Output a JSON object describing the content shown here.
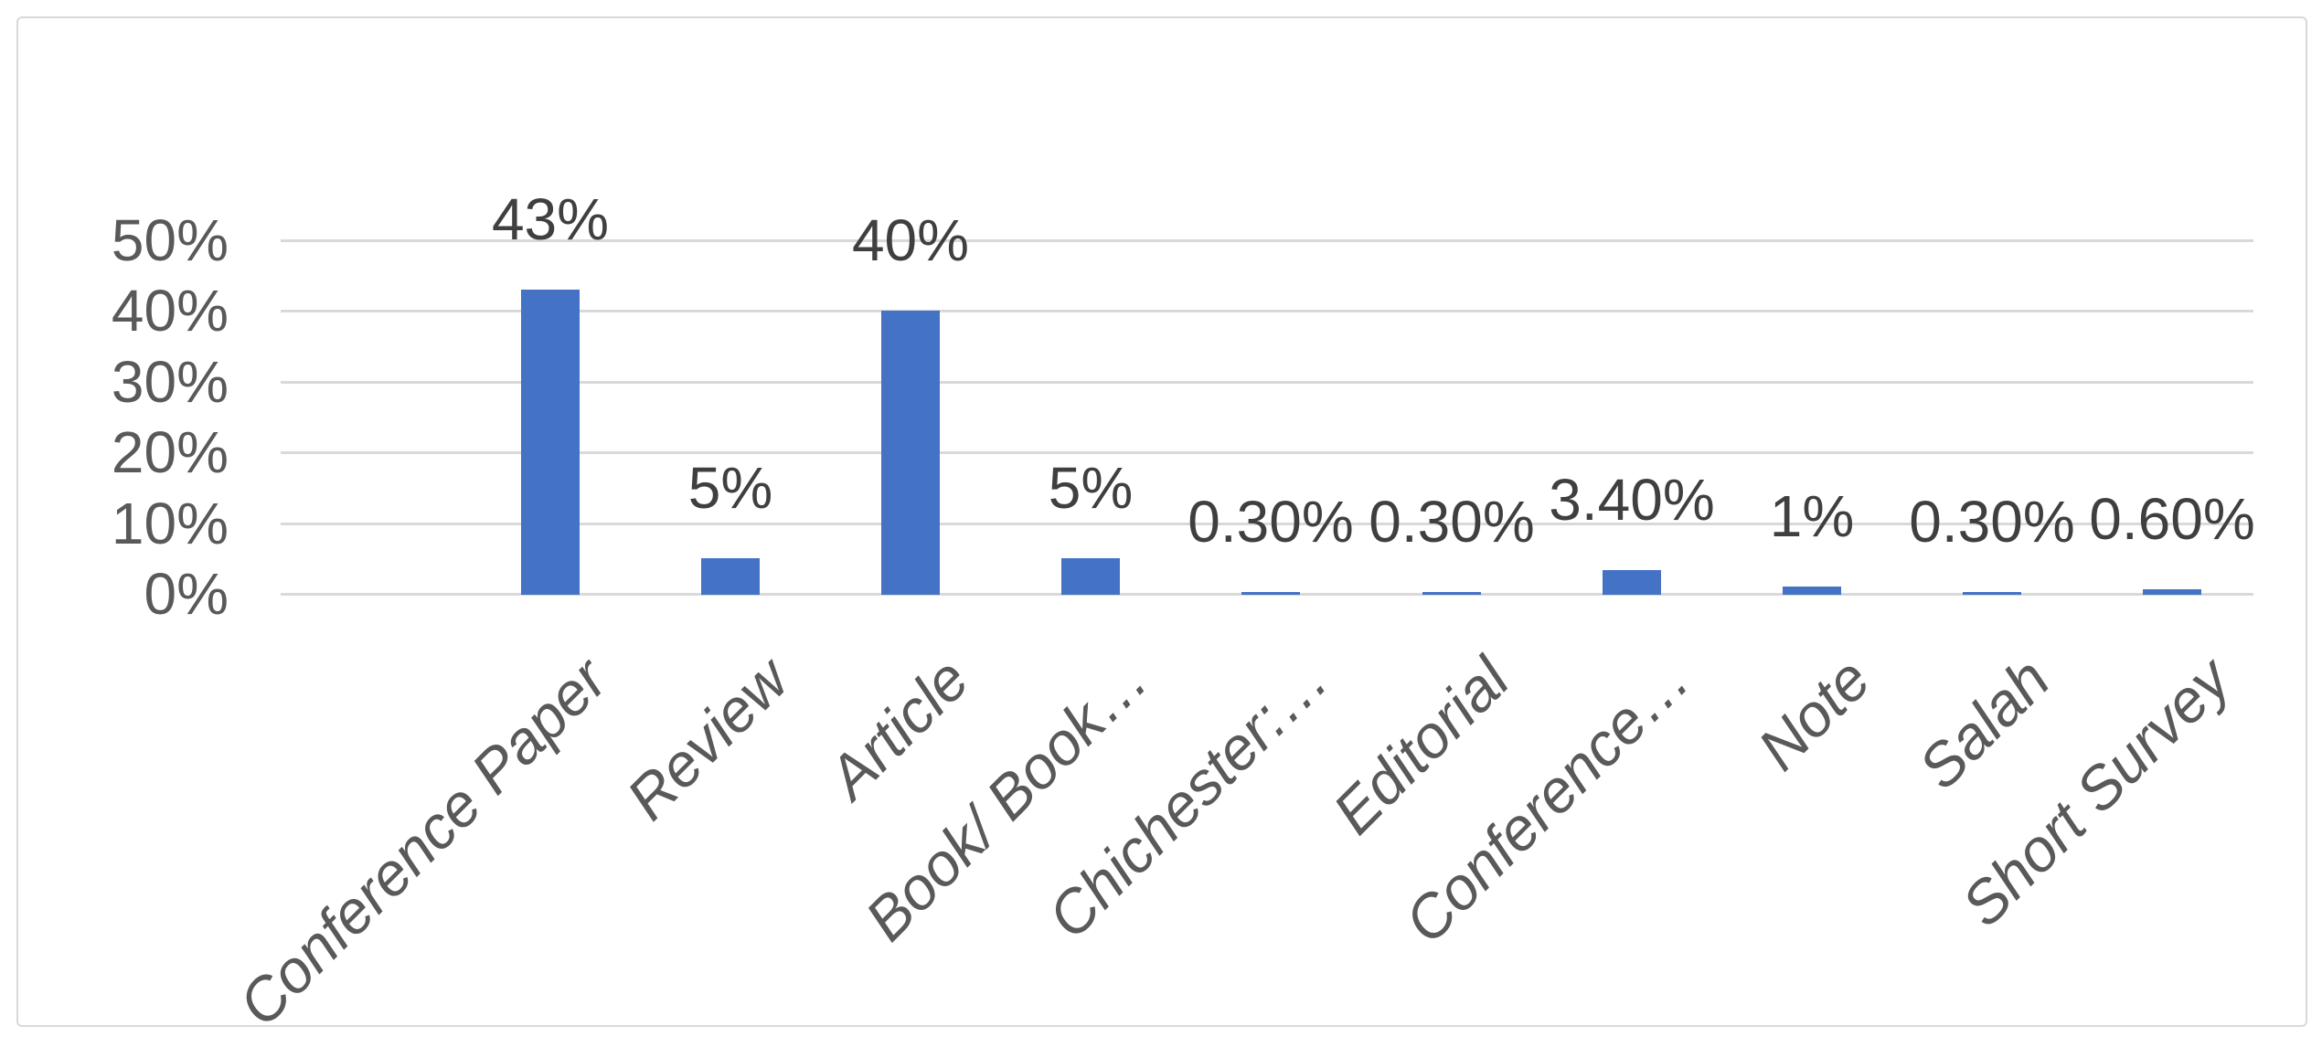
{
  "chart_data": {
    "type": "bar",
    "title": "",
    "xlabel": "",
    "ylabel": "",
    "categories": [
      "Conference Paper",
      "Review",
      "Article",
      "Book/ Book…",
      "Chichester:…",
      "Editorial",
      "Conference…",
      "Note",
      "Salah",
      "Short Survey"
    ],
    "values": [
      43,
      5,
      40,
      5,
      0.3,
      0.3,
      3.4,
      1,
      0.3,
      0.6
    ],
    "data_labels": [
      "43%",
      "5%",
      "40%",
      "5%",
      "0.30%",
      "0.30%",
      "3.40%",
      "1%",
      "0.30%",
      "0.60%"
    ],
    "y_axis": {
      "ticks": [
        "0%",
        "10%",
        "20%",
        "30%",
        "40%",
        "50%"
      ],
      "min_pct": 0,
      "max_pct": 50,
      "tick_step_pct": 10,
      "gridlines": "on"
    },
    "legend_position": "none",
    "bar_color": "#4472C4"
  },
  "style": {
    "bar_color": "#4472C4",
    "gridline_color": "#D9D9D9",
    "border_color": "#D9D9D9",
    "axis_text_color": "#595959",
    "data_label_color": "#3F3F3F",
    "background_color": "#FFFFFF"
  }
}
